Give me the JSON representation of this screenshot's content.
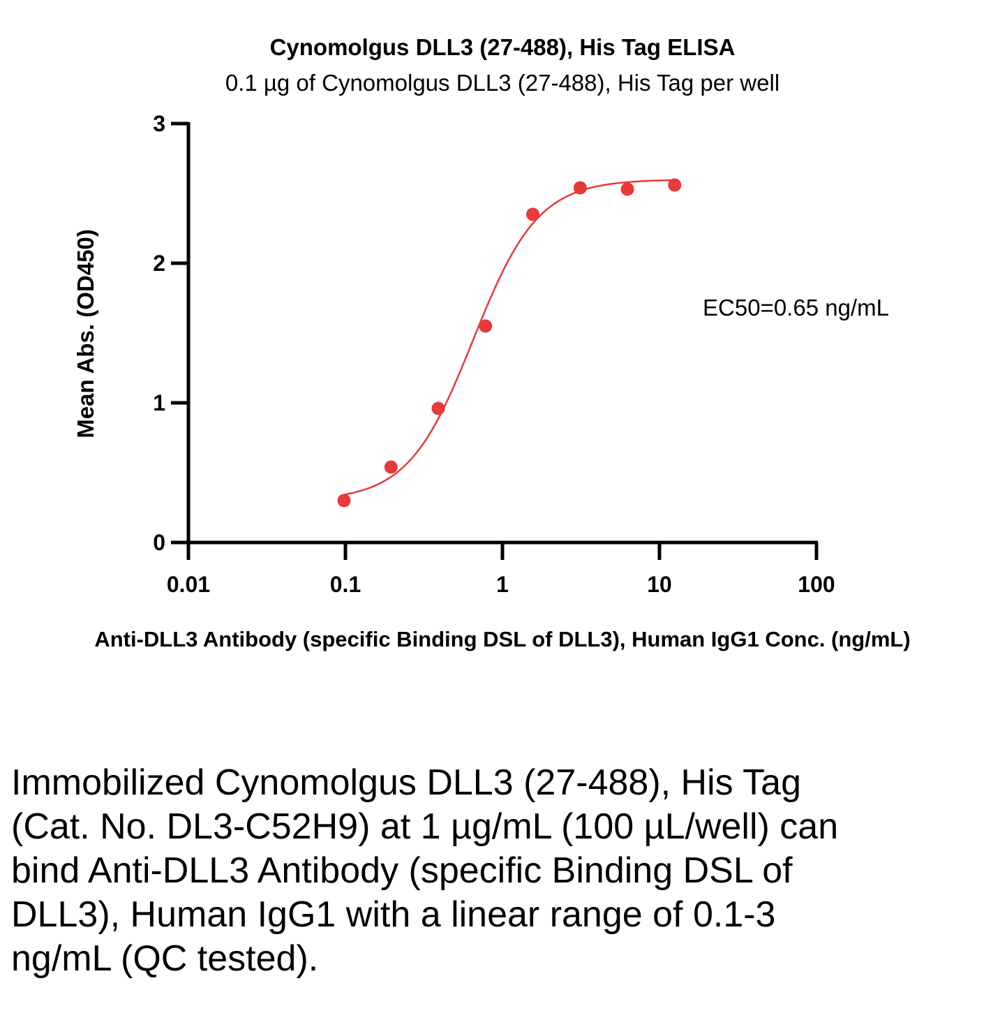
{
  "chart_data": {
    "type": "scatter",
    "title": "Cynomolgus DLL3 (27-488), His Tag ELISA",
    "subtitle": "0.1 µg of Cynomolgus DLL3 (27-488), His Tag per well",
    "xlabel": "Anti-DLL3 Antibody (specific Binding DSL of DLL3), Human IgG1 Conc. (ng/mL)",
    "ylabel": "Mean Abs. (OD450)",
    "x_scale": "log",
    "xlim": [
      0.01,
      100
    ],
    "ylim": [
      0,
      3
    ],
    "x_ticks": [
      0.01,
      0.1,
      1,
      10,
      100
    ],
    "x_tick_labels": [
      "0.01",
      "0.1",
      "1",
      "10",
      "100"
    ],
    "y_ticks": [
      0,
      1,
      2,
      3
    ],
    "y_tick_labels": [
      "0",
      "1",
      "2",
      "3"
    ],
    "grid": false,
    "series": [
      {
        "color": "#e8393b",
        "x": [
          0.098,
          0.195,
          0.39,
          0.78,
          1.56,
          3.125,
          6.25,
          12.5
        ],
        "y": [
          0.3,
          0.54,
          0.96,
          1.55,
          2.35,
          2.54,
          2.53,
          2.56
        ]
      }
    ],
    "fit_curve": {
      "bottom": 0.3,
      "top": 2.6,
      "ec50": 0.65,
      "hill": 2.1,
      "x_range": [
        0.098,
        12.5
      ]
    },
    "annotation": "EC50=0.65 ng/mL"
  },
  "caption": "Immobilized Cynomolgus DLL3 (27-488), His Tag (Cat. No. DL3-C52H9) at 1 µg/mL (100 µL/well) can bind Anti-DLL3 Antibody (specific Binding DSL of DLL3), Human IgG1 with a linear range of 0.1-3 ng/mL (QC tested)."
}
